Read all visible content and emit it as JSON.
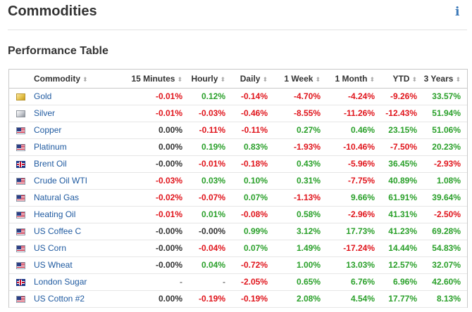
{
  "page": {
    "title": "Commodities",
    "info_icon": "i"
  },
  "section": {
    "title": "Performance Table"
  },
  "table": {
    "columns": [
      "Commodity",
      "15 Minutes",
      "Hourly",
      "Daily",
      "1 Week",
      "1 Month",
      "YTD",
      "3 Years"
    ],
    "sort_icon": "⬍",
    "rows": [
      {
        "flag": "gold",
        "name": "Gold",
        "values": [
          "-0.01%",
          "0.12%",
          "-0.14%",
          "-4.70%",
          "-4.24%",
          "-9.26%",
          "33.57%"
        ]
      },
      {
        "flag": "silver",
        "name": "Silver",
        "values": [
          "-0.01%",
          "-0.03%",
          "-0.46%",
          "-8.55%",
          "-11.26%",
          "-12.43%",
          "51.94%"
        ]
      },
      {
        "flag": "us",
        "name": "Copper",
        "values": [
          "0.00%",
          "-0.11%",
          "-0.11%",
          "0.27%",
          "0.46%",
          "23.15%",
          "51.06%"
        ]
      },
      {
        "flag": "us",
        "name": "Platinum",
        "values": [
          "0.00%",
          "0.19%",
          "0.83%",
          "-1.93%",
          "-10.46%",
          "-7.50%",
          "20.23%"
        ]
      },
      {
        "flag": "uk",
        "name": "Brent Oil",
        "values": [
          "-0.00%",
          "-0.01%",
          "-0.18%",
          "0.43%",
          "-5.96%",
          "36.45%",
          "-2.93%"
        ]
      },
      {
        "flag": "us",
        "name": "Crude Oil WTI",
        "values": [
          "-0.03%",
          "0.03%",
          "0.10%",
          "0.31%",
          "-7.75%",
          "40.89%",
          "1.08%"
        ]
      },
      {
        "flag": "us",
        "name": "Natural Gas",
        "values": [
          "-0.02%",
          "-0.07%",
          "0.07%",
          "-1.13%",
          "9.66%",
          "61.91%",
          "39.64%"
        ]
      },
      {
        "flag": "us",
        "name": "Heating Oil",
        "values": [
          "-0.01%",
          "0.01%",
          "-0.08%",
          "0.58%",
          "-2.96%",
          "41.31%",
          "-2.50%"
        ]
      },
      {
        "flag": "us",
        "name": "US Coffee C",
        "values": [
          "-0.00%",
          "-0.00%",
          "0.99%",
          "3.12%",
          "17.73%",
          "41.23%",
          "69.28%"
        ]
      },
      {
        "flag": "us",
        "name": "US Corn",
        "values": [
          "-0.00%",
          "-0.04%",
          "0.07%",
          "1.49%",
          "-17.24%",
          "14.44%",
          "54.83%"
        ]
      },
      {
        "flag": "us",
        "name": "US Wheat",
        "values": [
          "-0.00%",
          "0.04%",
          "-0.72%",
          "1.00%",
          "13.03%",
          "12.57%",
          "32.07%"
        ]
      },
      {
        "flag": "uk",
        "name": "London Sugar",
        "values": [
          "-",
          "-",
          "-2.05%",
          "0.65%",
          "6.76%",
          "6.96%",
          "42.60%"
        ]
      },
      {
        "flag": "us",
        "name": "US Cotton #2",
        "values": [
          "0.00%",
          "-0.19%",
          "-0.19%",
          "2.08%",
          "4.54%",
          "17.77%",
          "8.13%"
        ]
      }
    ]
  },
  "colors": {
    "positive": "#2aa02a",
    "negative": "#e0141b",
    "neutral": "#333333",
    "link": "#1f5aa0"
  }
}
